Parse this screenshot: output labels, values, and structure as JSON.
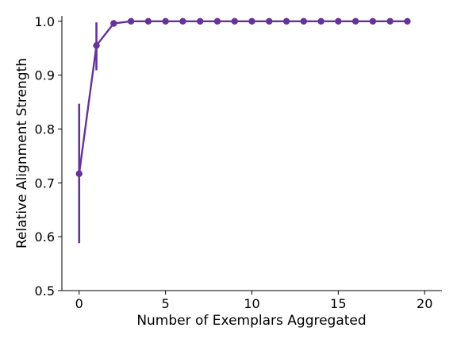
{
  "chart_data": {
    "type": "line",
    "xlabel": "Number of Exemplars Aggregated",
    "ylabel": "Relative Alignment Strength",
    "xlim": [
      -1,
      21
    ],
    "ylim": [
      0.5,
      1.01
    ],
    "xticks": [
      0,
      5,
      10,
      15,
      20
    ],
    "yticks": [
      0.5,
      0.6,
      0.7,
      0.8,
      0.9,
      1.0
    ],
    "xtick_labels": [
      "0",
      "5",
      "10",
      "15",
      "20"
    ],
    "ytick_labels": [
      "0.5",
      "0.6",
      "0.7",
      "0.8",
      "0.9",
      "1.0"
    ],
    "grid": false,
    "series": [
      {
        "color": "#663399",
        "x": [
          0,
          1,
          2,
          3,
          4,
          5,
          6,
          7,
          8,
          9,
          10,
          11,
          12,
          13,
          14,
          15,
          16,
          17,
          18,
          19
        ],
        "y": [
          0.717,
          0.955,
          0.996,
          1.0,
          1.0,
          1.0,
          1.0,
          1.0,
          1.0,
          1.0,
          1.0,
          1.0,
          1.0,
          1.0,
          1.0,
          1.0,
          1.0,
          1.0,
          1.0,
          1.0
        ],
        "y_err_low": [
          0.588,
          0.909,
          0.99,
          1.0,
          1.0,
          1.0,
          1.0,
          1.0,
          1.0,
          1.0,
          1.0,
          1.0,
          1.0,
          1.0,
          1.0,
          1.0,
          1.0,
          1.0,
          1.0,
          1.0
        ],
        "y_err_high": [
          0.847,
          0.998,
          1.0,
          1.0,
          1.0,
          1.0,
          1.0,
          1.0,
          1.0,
          1.0,
          1.0,
          1.0,
          1.0,
          1.0,
          1.0,
          1.0,
          1.0,
          1.0,
          1.0,
          1.0
        ]
      }
    ]
  }
}
